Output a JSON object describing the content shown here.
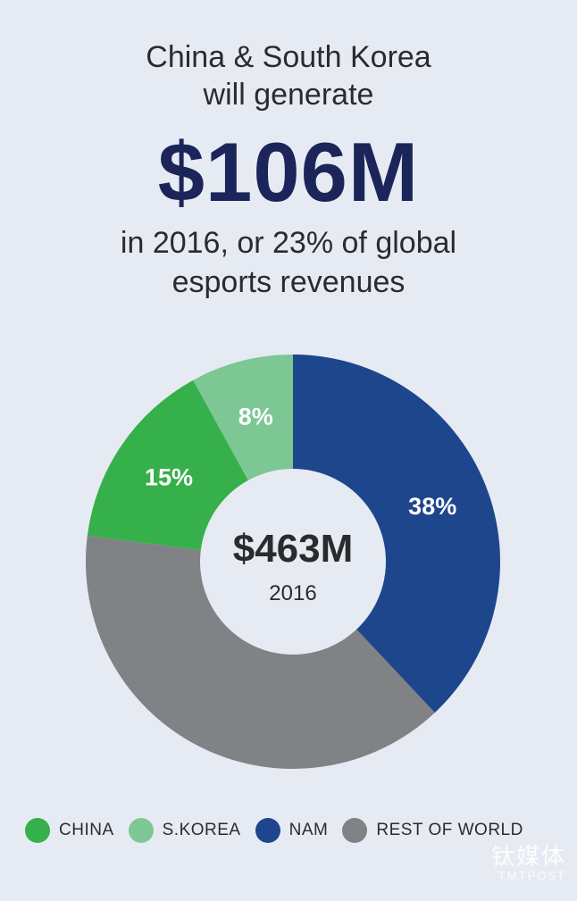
{
  "header": {
    "line1": "China & South Korea",
    "line2": "will generate",
    "big_value": "$106M",
    "sub1": "in 2016, or 23% of global",
    "sub2": "esports revenues"
  },
  "chart_data": {
    "type": "pie",
    "variant": "donut",
    "center_value": "$463M",
    "center_label": "2016",
    "slices": [
      {
        "name": "NAM",
        "value": 38,
        "label": "38%",
        "color": "#1e468c"
      },
      {
        "name": "REST OF WORLD",
        "value": 39,
        "label": "",
        "color": "#818286"
      },
      {
        "name": "CHINA",
        "value": 15,
        "label": "15%",
        "color": "#36b04a"
      },
      {
        "name": "S.KOREA",
        "value": 8,
        "label": "8%",
        "color": "#7dc795"
      }
    ],
    "legend_position": "bottom"
  },
  "legend": [
    {
      "label": "CHINA",
      "color": "#36b04a"
    },
    {
      "label": "S.KOREA",
      "color": "#7dc795"
    },
    {
      "label": "NAM",
      "color": "#1e468c"
    },
    {
      "label": "REST OF WORLD",
      "color": "#818286"
    }
  ],
  "watermark": {
    "line1": "钛媒体",
    "line2": "TMTPOST"
  }
}
